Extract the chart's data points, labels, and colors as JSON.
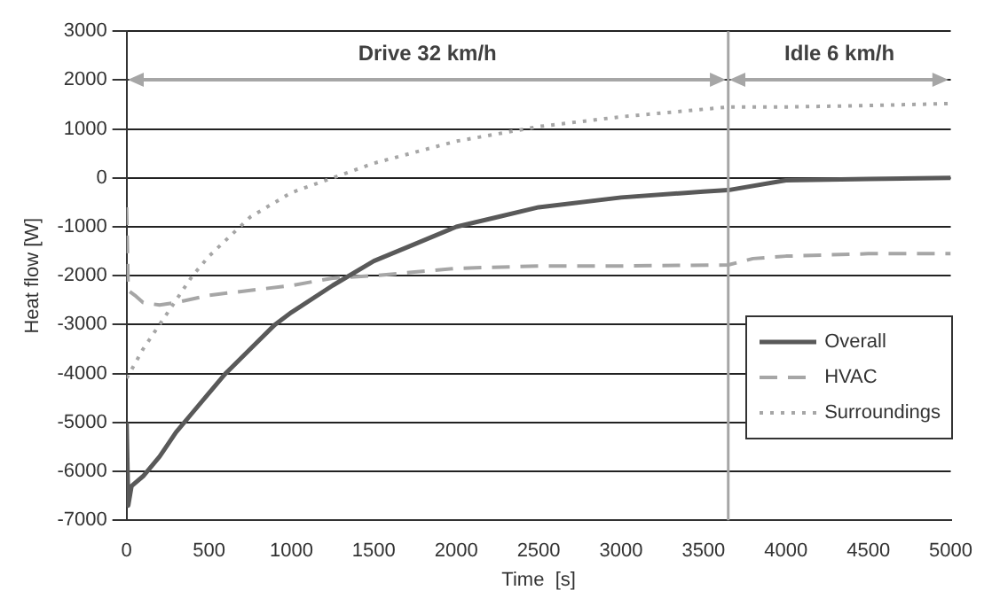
{
  "chart_data": {
    "type": "line",
    "xlabel": "Time  [s]",
    "ylabel": "Heat flow [W]",
    "xlim": [
      0,
      5000
    ],
    "xticks": [
      0,
      500,
      1000,
      1500,
      2000,
      2500,
      3000,
      3500,
      4000,
      4500,
      5000
    ],
    "ylim": [
      -7000,
      3000
    ],
    "yticks": [
      -7000,
      -6000,
      -5000,
      -4000,
      -3000,
      -2000,
      -1000,
      0,
      1000,
      2000,
      3000
    ],
    "grid": "y",
    "legend": "right",
    "marker": "none",
    "series": [
      {
        "name": "Overall",
        "color": "#595959",
        "line_style": "solid",
        "x": [
          0,
          10,
          30,
          100,
          200,
          300,
          400,
          500,
          600,
          750,
          900,
          1000,
          1250,
          1500,
          1750,
          2000,
          2250,
          2500,
          3000,
          3500,
          3650,
          4000,
          4500,
          5000
        ],
        "values": [
          -5000,
          -6700,
          -6300,
          -6100,
          -5700,
          -5200,
          -4800,
          -4400,
          -4000,
          -3500,
          -3000,
          -2750,
          -2200,
          -1700,
          -1350,
          -1000,
          -800,
          -600,
          -400,
          -280,
          -250,
          -50,
          -20,
          0
        ]
      },
      {
        "name": "HVAC",
        "color": "#a6a6a6",
        "line_style": "dashed",
        "x": [
          0,
          10,
          50,
          100,
          200,
          300,
          500,
          750,
          1000,
          1250,
          1500,
          2000,
          2500,
          3000,
          3650,
          3800,
          4000,
          4500,
          5000
        ],
        "values": [
          -600,
          -2300,
          -2400,
          -2550,
          -2600,
          -2550,
          -2400,
          -2300,
          -2200,
          -2050,
          -2000,
          -1850,
          -1800,
          -1800,
          -1780,
          -1650,
          -1600,
          -1550,
          -1550
        ]
      },
      {
        "name": "Surroundings",
        "color": "#a6a6a6",
        "line_style": "dotted",
        "x": [
          0,
          100,
          200,
          300,
          400,
          500,
          750,
          1000,
          1250,
          1500,
          2000,
          2500,
          3000,
          3650,
          4000,
          4500,
          5000
        ],
        "values": [
          -4100,
          -3500,
          -3000,
          -2500,
          -2000,
          -1600,
          -800,
          -300,
          0,
          300,
          750,
          1050,
          1250,
          1450,
          1450,
          1480,
          1520
        ]
      }
    ],
    "ref_lines": [
      {
        "axis": "x",
        "value": 3650,
        "color": "#a6a6a6"
      }
    ],
    "annotations": [
      "Drive 32 km/h",
      "Idle 6 km/h"
    ]
  }
}
